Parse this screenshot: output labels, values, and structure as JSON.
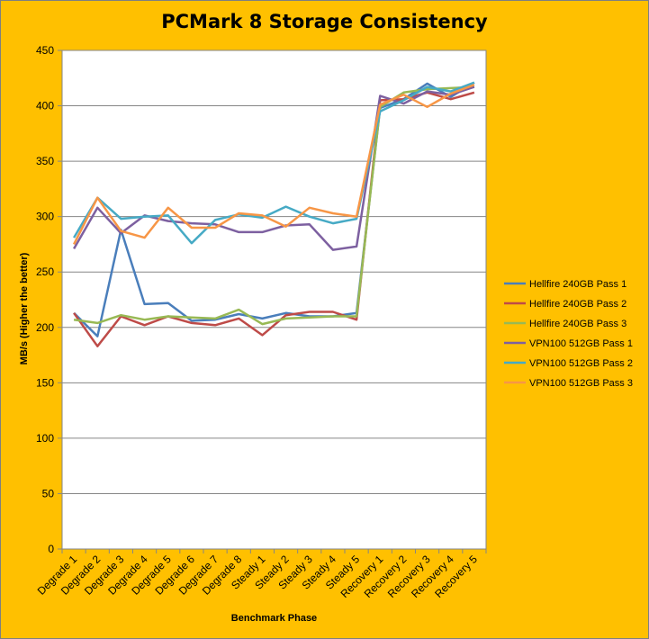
{
  "chart_data": {
    "type": "line",
    "title": "PCMark 8 Storage Consistency",
    "xlabel": "Benchmark Phase",
    "ylabel": "MB/s (Higher the better)",
    "ylim": [
      0,
      450
    ],
    "yticks": [
      0,
      50,
      100,
      150,
      200,
      250,
      300,
      350,
      400,
      450
    ],
    "grid": true,
    "legend_position": "right",
    "categories": [
      "Degrade 1",
      "Degrade 2",
      "Degrade 3",
      "Degrade 4",
      "Degrade 5",
      "Degrade 6",
      "Degrade 7",
      "Degrade 8",
      "Steady 1",
      "Steady 2",
      "Steady 3",
      "Steady 4",
      "Steady 5",
      "Recovery 1",
      "Recovery 2",
      "Recovery 3",
      "Recovery 4",
      "Recovery 5"
    ],
    "series": [
      {
        "name": "Hellfire 240GB Pass 1",
        "color": "#4a7ebb",
        "values": [
          213,
          192,
          288,
          221,
          222,
          206,
          207,
          212,
          208,
          213,
          210,
          210,
          213,
          398,
          406,
          420,
          408,
          421
        ]
      },
      {
        "name": "Hellfire 240GB Pass 2",
        "color": "#be4b48",
        "values": [
          213,
          183,
          210,
          202,
          210,
          204,
          202,
          208,
          193,
          211,
          214,
          214,
          207,
          405,
          406,
          412,
          406,
          412
        ]
      },
      {
        "name": "Hellfire 240GB Pass 3",
        "color": "#98b954",
        "values": [
          207,
          204,
          211,
          207,
          210,
          209,
          208,
          216,
          203,
          208,
          209,
          210,
          210,
          399,
          412,
          415,
          416,
          417
        ]
      },
      {
        "name": "VPN100 512GB Pass 1",
        "color": "#7d60a0",
        "values": [
          271,
          308,
          285,
          301,
          296,
          294,
          293,
          286,
          286,
          292,
          293,
          270,
          273,
          409,
          402,
          413,
          410,
          417
        ]
      },
      {
        "name": "VPN100 512GB Pass 2",
        "color": "#46aac5",
        "values": [
          281,
          317,
          298,
          300,
          301,
          276,
          297,
          302,
          299,
          309,
          300,
          294,
          298,
          395,
          405,
          417,
          413,
          421
        ]
      },
      {
        "name": "VPN100 512GB Pass 3",
        "color": "#f79646",
        "values": [
          275,
          317,
          287,
          281,
          308,
          290,
          290,
          303,
          301,
          291,
          308,
          303,
          300,
          401,
          410,
          399,
          411,
          419
        ]
      }
    ]
  }
}
